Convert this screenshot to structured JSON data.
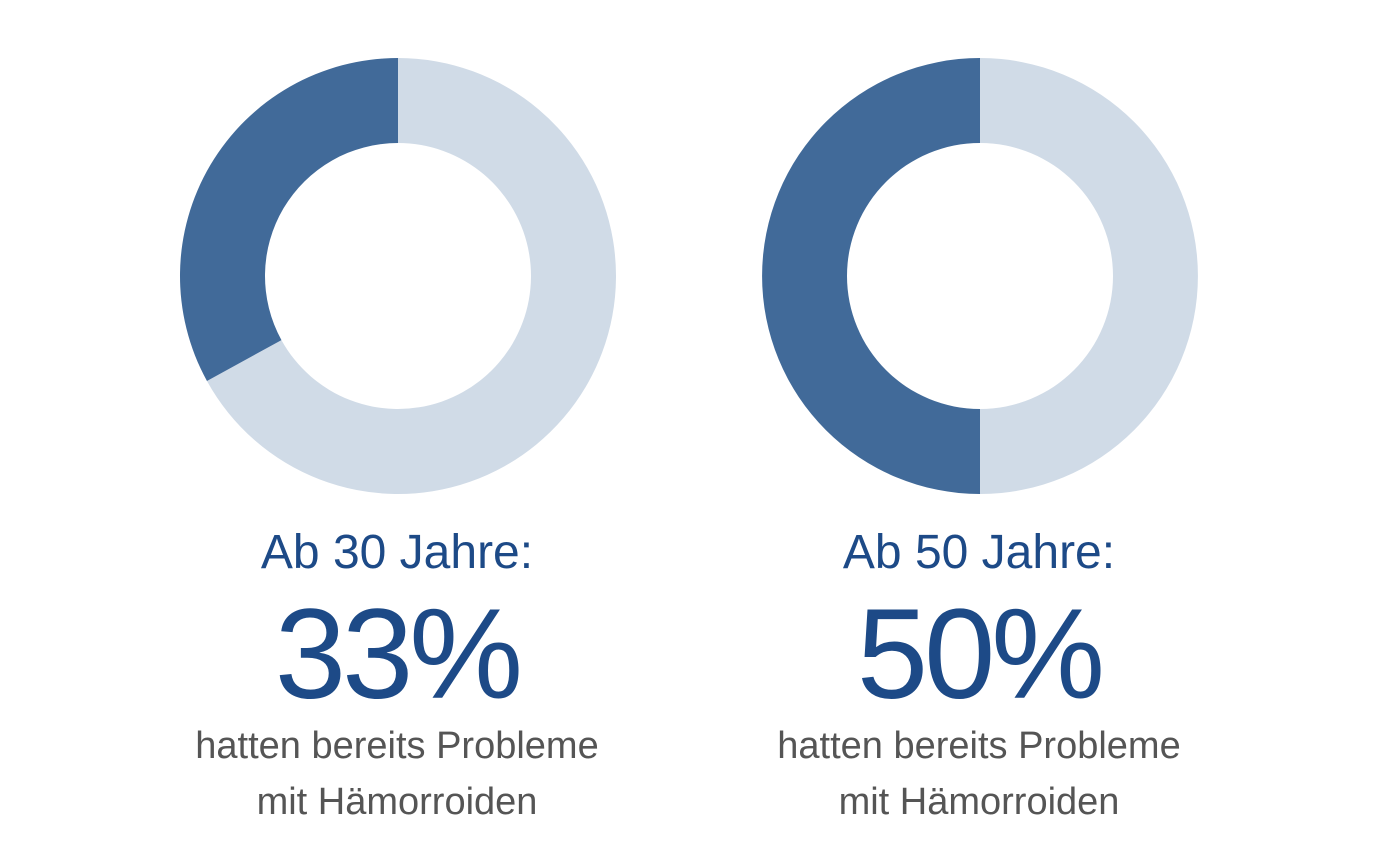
{
  "colors": {
    "primary": "#416a99",
    "secondary": "#d0dbe7",
    "text_blue": "#1d4a87",
    "text_grey": "#555555"
  },
  "chart_data": [
    {
      "type": "pie",
      "variant": "donut",
      "segments": [
        {
          "value": 33,
          "color": "#416a99"
        },
        {
          "value": 67,
          "color": "#d0dbe7"
        }
      ],
      "heading": "Ab 30 Jahre:",
      "percent_label": "33%",
      "caption_line1": "hatten bereits Probleme",
      "caption_line2": "mit Hämorroiden"
    },
    {
      "type": "pie",
      "variant": "donut",
      "segments": [
        {
          "value": 50,
          "color": "#416a99"
        },
        {
          "value": 50,
          "color": "#d0dbe7"
        }
      ],
      "heading": "Ab 50 Jahre:",
      "percent_label": "50%",
      "caption_line1": "hatten bereits Probleme",
      "caption_line2": "mit Hämorroiden"
    }
  ]
}
